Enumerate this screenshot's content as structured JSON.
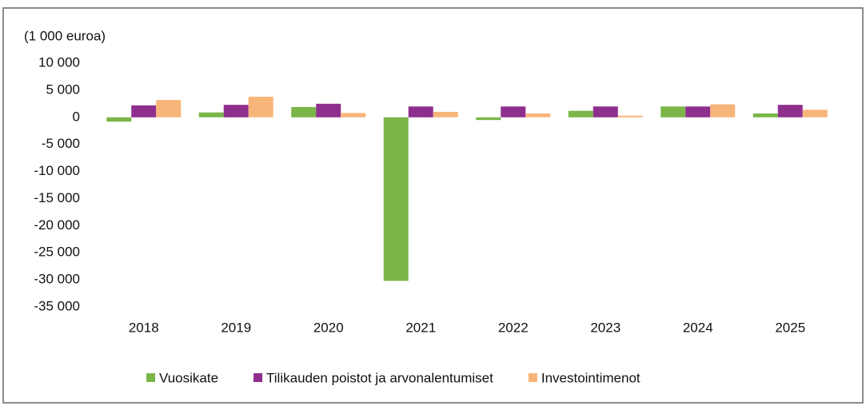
{
  "chart_data": {
    "type": "bar",
    "y_label": "(1 000 euroa)",
    "categories": [
      "2018",
      "2019",
      "2020",
      "2021",
      "2022",
      "2023",
      "2024",
      "2025"
    ],
    "series": [
      {
        "name": "Vuosikate",
        "color": "#7ab648",
        "values": [
          -800,
          900,
          1900,
          -30200,
          -500,
          1200,
          2000,
          700
        ]
      },
      {
        "name": "Tilikauden poistot ja arvonalentumiset",
        "color": "#8e2f8e",
        "values": [
          2200,
          2300,
          2500,
          2000,
          2000,
          2000,
          2000,
          2300
        ]
      },
      {
        "name": "Investointimenot",
        "color": "#f8b57a",
        "values": [
          3200,
          3800,
          800,
          1000,
          700,
          300,
          2400,
          1400
        ]
      }
    ],
    "ylim": [
      -35000,
      10000
    ],
    "yticks": [
      {
        "value": 10000,
        "label": "10 000"
      },
      {
        "value": 5000,
        "label": "5 000"
      },
      0,
      {
        "value": -5000,
        "label": "-5 000"
      },
      {
        "value": -10000,
        "label": "-10 000"
      },
      {
        "value": -15000,
        "label": "-15 000"
      },
      {
        "value": -20000,
        "label": "-20 000"
      },
      {
        "value": -25000,
        "label": "-25 000"
      },
      {
        "value": -30000,
        "label": "-30 000"
      },
      {
        "value": -35000,
        "label": "-35 000"
      }
    ],
    "legend": "bottom"
  }
}
